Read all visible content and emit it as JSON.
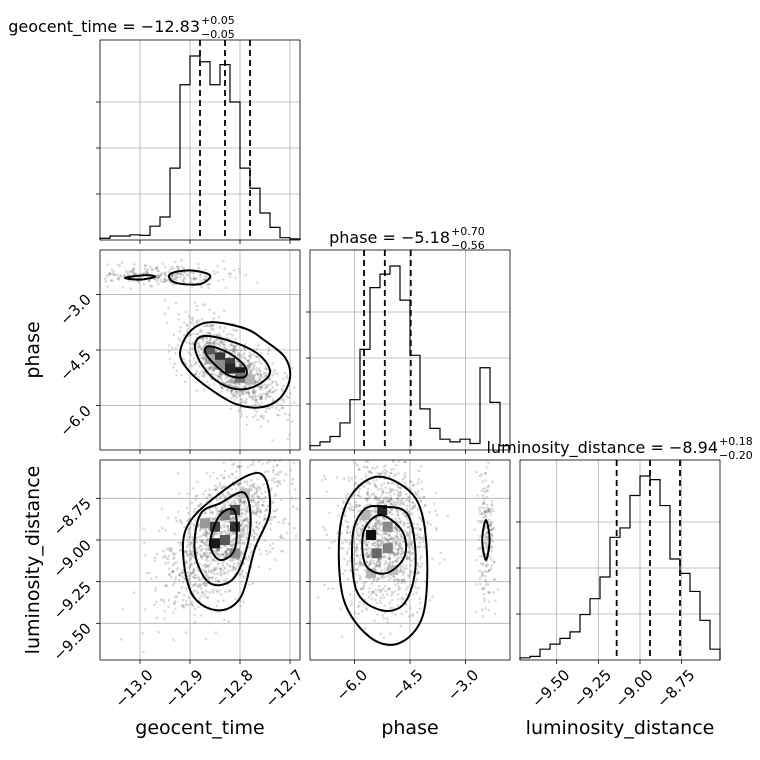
{
  "chart_data": {
    "type": "corner",
    "parameters": [
      "geocent_time",
      "phase",
      "luminosity_distance"
    ],
    "axis_labels": {
      "geocent_time": "geocent_time",
      "phase": "phase",
      "luminosity_distance": "luminosity_distance"
    },
    "ranges": {
      "geocent_time": [
        -13.08,
        -12.68
      ],
      "phase": [
        -7.2,
        -1.8
      ],
      "luminosity_distance": [
        -9.72,
        -8.52
      ]
    },
    "ticks": {
      "geocent_time": [
        -13.0,
        -12.9,
        -12.8,
        -12.7
      ],
      "phase": [
        -6.0,
        -4.5,
        -3.0
      ],
      "luminosity_distance": [
        -9.5,
        -9.25,
        -9.0,
        -8.75
      ]
    },
    "tick_labels": {
      "geocent_time": [
        "−13.0",
        "−12.9",
        "−12.8",
        "−12.7"
      ],
      "phase": [
        "−6.0",
        "−4.5",
        "−3.0"
      ],
      "luminosity_distance": [
        "−9.50",
        "−9.25",
        "−9.00",
        "−8.75"
      ]
    },
    "titles": {
      "geocent_time": {
        "main": "geocent_time = −12.83",
        "plus": "+0.05",
        "minus": "−0.05"
      },
      "phase": {
        "main": "phase = −5.18",
        "plus": "+0.70",
        "minus": "−0.56"
      },
      "luminosity_distance": {
        "main": "luminosity_distance = −8.94",
        "plus": "+0.18",
        "minus": "−0.20"
      }
    },
    "quantiles": {
      "geocent_time": [
        -12.88,
        -12.83,
        -12.78
      ],
      "phase": [
        -5.74,
        -5.18,
        -4.48
      ],
      "luminosity_distance": [
        -9.14,
        -8.94,
        -8.76
      ]
    },
    "histograms": {
      "geocent_time": {
        "edges": [
          -13.08,
          -13.06,
          -13.04,
          -13.02,
          -13.0,
          -12.98,
          -12.96,
          -12.94,
          -12.92,
          -12.9,
          -12.88,
          -12.86,
          -12.84,
          -12.82,
          -12.8,
          -12.78,
          -12.76,
          -12.74,
          -12.72,
          -12.7,
          -12.68
        ],
        "counts": [
          3,
          7,
          7,
          9,
          8,
          24,
          40,
          125,
          270,
          320,
          310,
          270,
          305,
          240,
          125,
          90,
          47,
          22,
          4,
          2
        ]
      },
      "phase": {
        "edges": [
          -7.2,
          -6.93,
          -6.66,
          -6.39,
          -6.12,
          -5.85,
          -5.58,
          -5.31,
          -5.04,
          -4.77,
          -4.5,
          -4.23,
          -3.96,
          -3.69,
          -3.42,
          -3.15,
          -2.88,
          -2.61,
          -2.34,
          -2.07,
          -1.8
        ],
        "counts": [
          8,
          15,
          25,
          50,
          93,
          186,
          300,
          325,
          340,
          277,
          175,
          76,
          40,
          20,
          15,
          20,
          12,
          152,
          88,
          8
        ]
      },
      "luminosity_distance": {
        "edges": [
          -9.72,
          -9.66,
          -9.6,
          -9.54,
          -9.48,
          -9.42,
          -9.36,
          -9.3,
          -9.24,
          -9.18,
          -9.12,
          -9.06,
          -9.0,
          -8.94,
          -8.88,
          -8.82,
          -8.76,
          -8.7,
          -8.64,
          -8.58,
          -8.52
        ],
        "counts": [
          3,
          5,
          15,
          22,
          30,
          39,
          63,
          85,
          115,
          170,
          183,
          228,
          255,
          250,
          214,
          140,
          120,
          95,
          55,
          15
        ]
      }
    },
    "contours_2d": {
      "phase_vs_geocent_time": [
        {
          "level": "outer",
          "points": [
            [
              -12.86,
              -3.75
            ],
            [
              -12.79,
              -3.92
            ],
            [
              -12.75,
              -4.25
            ],
            [
              -12.71,
              -4.7
            ],
            [
              -12.7,
              -5.25
            ],
            [
              -12.72,
              -5.8
            ],
            [
              -12.76,
              -6.05
            ],
            [
              -12.81,
              -5.95
            ],
            [
              -12.86,
              -5.55
            ],
            [
              -12.9,
              -5.1
            ],
            [
              -12.92,
              -4.6
            ],
            [
              -12.9,
              -4.0
            ]
          ]
        },
        {
          "level": "middle",
          "points": [
            [
              -12.87,
              -4.12
            ],
            [
              -12.81,
              -4.3
            ],
            [
              -12.76,
              -4.65
            ],
            [
              -12.74,
              -5.12
            ],
            [
              -12.77,
              -5.48
            ],
            [
              -12.81,
              -5.55
            ],
            [
              -12.85,
              -5.3
            ],
            [
              -12.88,
              -4.82
            ],
            [
              -12.89,
              -4.35
            ]
          ]
        },
        {
          "level": "inner",
          "points": [
            [
              -12.86,
              -4.4
            ],
            [
              -12.82,
              -4.6
            ],
            [
              -12.79,
              -4.95
            ],
            [
              -12.79,
              -5.22
            ],
            [
              -12.82,
              -5.2
            ],
            [
              -12.85,
              -4.9
            ],
            [
              -12.87,
              -4.55
            ]
          ]
        },
        {
          "level": "side-left",
          "points": [
            [
              -13.03,
              -2.55
            ],
            [
              -12.99,
              -2.48
            ],
            [
              -12.97,
              -2.52
            ],
            [
              -13.0,
              -2.6
            ]
          ]
        },
        {
          "level": "side-right",
          "points": [
            [
              -12.94,
              -2.45
            ],
            [
              -12.9,
              -2.35
            ],
            [
              -12.86,
              -2.48
            ],
            [
              -12.88,
              -2.72
            ],
            [
              -12.93,
              -2.68
            ]
          ]
        }
      ],
      "luminosity_distance_vs_geocent_time": [
        {
          "level": "outer",
          "points": [
            [
              -12.84,
              -8.72
            ],
            [
              -12.76,
              -8.6
            ],
            [
              -12.74,
              -8.82
            ],
            [
              -12.77,
              -9.05
            ],
            [
              -12.8,
              -9.35
            ],
            [
              -12.85,
              -9.42
            ],
            [
              -12.9,
              -9.3
            ],
            [
              -12.91,
              -8.95
            ]
          ]
        },
        {
          "level": "middle",
          "points": [
            [
              -12.84,
              -8.78
            ],
            [
              -12.79,
              -8.72
            ],
            [
              -12.78,
              -8.95
            ],
            [
              -12.81,
              -9.22
            ],
            [
              -12.86,
              -9.26
            ],
            [
              -12.89,
              -9.08
            ],
            [
              -12.88,
              -8.85
            ]
          ]
        },
        {
          "level": "inner",
          "points": [
            [
              -12.84,
              -8.85
            ],
            [
              -12.81,
              -8.83
            ],
            [
              -12.81,
              -9.05
            ],
            [
              -12.84,
              -9.12
            ],
            [
              -12.86,
              -9.02
            ]
          ]
        }
      ],
      "luminosity_distance_vs_phase": [
        {
          "level": "outer",
          "points": [
            [
              -5.3,
              -8.62
            ],
            [
              -4.35,
              -8.75
            ],
            [
              -4.05,
              -9.05
            ],
            [
              -4.15,
              -9.45
            ],
            [
              -4.8,
              -9.62
            ],
            [
              -5.6,
              -9.58
            ],
            [
              -6.3,
              -9.35
            ],
            [
              -6.4,
              -8.95
            ],
            [
              -6.05,
              -8.72
            ]
          ]
        },
        {
          "level": "middle",
          "points": [
            [
              -5.25,
              -8.8
            ],
            [
              -4.55,
              -8.85
            ],
            [
              -4.35,
              -9.15
            ],
            [
              -4.65,
              -9.38
            ],
            [
              -5.3,
              -9.42
            ],
            [
              -5.95,
              -9.3
            ],
            [
              -6.05,
              -8.98
            ],
            [
              -5.75,
              -8.82
            ]
          ]
        },
        {
          "level": "inner",
          "points": [
            [
              -5.3,
              -8.85
            ],
            [
              -4.7,
              -8.95
            ],
            [
              -4.65,
              -9.1
            ],
            [
              -5.15,
              -9.2
            ],
            [
              -5.7,
              -9.15
            ],
            [
              -5.75,
              -8.95
            ]
          ]
        },
        {
          "level": "side",
          "points": [
            [
              -2.45,
              -8.88
            ],
            [
              -2.35,
              -9.0
            ],
            [
              -2.45,
              -9.12
            ],
            [
              -2.55,
              -9.0
            ]
          ]
        }
      ]
    },
    "density_2d": {
      "phase_vs_geocent_time": [
        {
          "x": -12.86,
          "y": -4.55,
          "v": 0.65
        },
        {
          "x": -12.84,
          "y": -4.7,
          "v": 0.8
        },
        {
          "x": -12.82,
          "y": -4.85,
          "v": 0.75
        },
        {
          "x": -12.82,
          "y": -5.0,
          "v": 0.85
        },
        {
          "x": -12.8,
          "y": -5.1,
          "v": 0.9
        },
        {
          "x": -12.84,
          "y": -4.9,
          "v": 0.45
        },
        {
          "x": -12.8,
          "y": -5.25,
          "v": 0.55
        },
        {
          "x": -12.86,
          "y": -4.75,
          "v": 0.35
        },
        {
          "x": -12.78,
          "y": -5.3,
          "v": 0.3
        }
      ],
      "luminosity_distance_vs_geocent_time": [
        {
          "x": -12.85,
          "y": -8.92,
          "v": 0.75
        },
        {
          "x": -12.81,
          "y": -8.92,
          "v": 0.8
        },
        {
          "x": -12.83,
          "y": -9.0,
          "v": 0.65
        },
        {
          "x": -12.85,
          "y": -9.02,
          "v": 0.9
        },
        {
          "x": -12.81,
          "y": -8.82,
          "v": 0.7
        },
        {
          "x": -12.83,
          "y": -8.85,
          "v": 0.5
        },
        {
          "x": -12.87,
          "y": -8.9,
          "v": 0.4
        },
        {
          "x": -12.81,
          "y": -9.08,
          "v": 0.45
        },
        {
          "x": -12.79,
          "y": -8.72,
          "v": 0.25
        }
      ],
      "luminosity_distance_vs_phase": [
        {
          "x": -5.55,
          "y": -8.97,
          "v": 0.95
        },
        {
          "x": -5.25,
          "y": -8.82,
          "v": 0.85
        },
        {
          "x": -5.4,
          "y": -9.08,
          "v": 0.6
        },
        {
          "x": -5.1,
          "y": -9.05,
          "v": 0.5
        },
        {
          "x": -5.55,
          "y": -9.2,
          "v": 0.3
        },
        {
          "x": -5.1,
          "y": -8.92,
          "v": 0.45
        },
        {
          "x": -5.7,
          "y": -8.85,
          "v": 0.3
        },
        {
          "x": -4.95,
          "y": -9.18,
          "v": 0.25
        }
      ]
    },
    "scatter_density": {
      "phase_vs_geocent_time": [
        {
          "cx": -12.82,
          "cy": -4.95,
          "sx": 0.05,
          "sy": 0.6,
          "rho": -0.65,
          "n": 1050
        },
        {
          "cx": -12.95,
          "cy": -2.5,
          "sx": 0.07,
          "sy": 0.15,
          "rho": 0.0,
          "n": 260
        }
      ],
      "luminosity_distance_vs_geocent_time": [
        {
          "cx": -12.83,
          "cy": -8.97,
          "sx": 0.06,
          "sy": 0.22,
          "rho": 0.6,
          "n": 1350
        }
      ],
      "luminosity_distance_vs_phase": [
        {
          "cx": -5.18,
          "cy": -8.97,
          "sx": 0.6,
          "sy": 0.22,
          "rho": 0.0,
          "n": 1200
        },
        {
          "cx": -2.45,
          "cy": -9.0,
          "sx": 0.12,
          "sy": 0.22,
          "rho": 0.0,
          "n": 200
        }
      ]
    }
  }
}
